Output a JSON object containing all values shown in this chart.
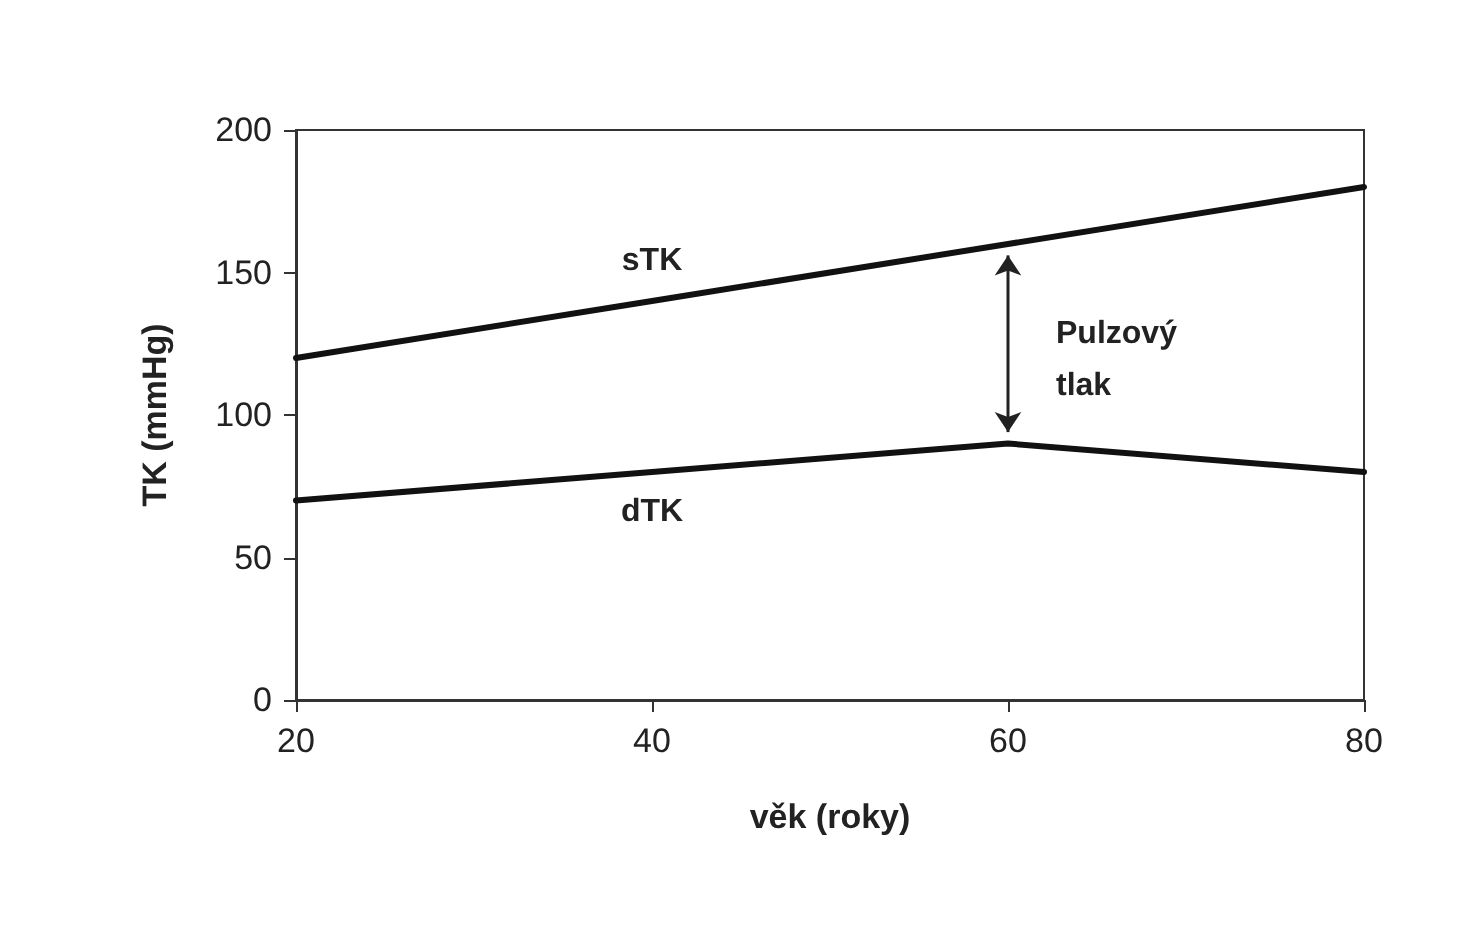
{
  "chart_data": {
    "type": "line",
    "xlabel": "věk (roky)",
    "ylabel": "TK (mmHg)",
    "xlim": [
      20,
      80
    ],
    "xticks": [
      20,
      40,
      60,
      80
    ],
    "ylim": [
      0,
      200
    ],
    "yticks": [
      0,
      50,
      100,
      150,
      200
    ],
    "series": [
      {
        "name": "sTK",
        "color": "#111111",
        "x": [
          20,
          40,
          60,
          80
        ],
        "values": [
          120,
          140,
          160,
          180
        ]
      },
      {
        "name": "dTK",
        "color": "#111111",
        "x": [
          20,
          40,
          60,
          80
        ],
        "values": [
          70,
          80,
          90,
          80
        ]
      }
    ],
    "annotations": [
      "Pulzový tlak"
    ],
    "grid": false,
    "legend": false,
    "marker": "none",
    "line_style": "solid"
  }
}
